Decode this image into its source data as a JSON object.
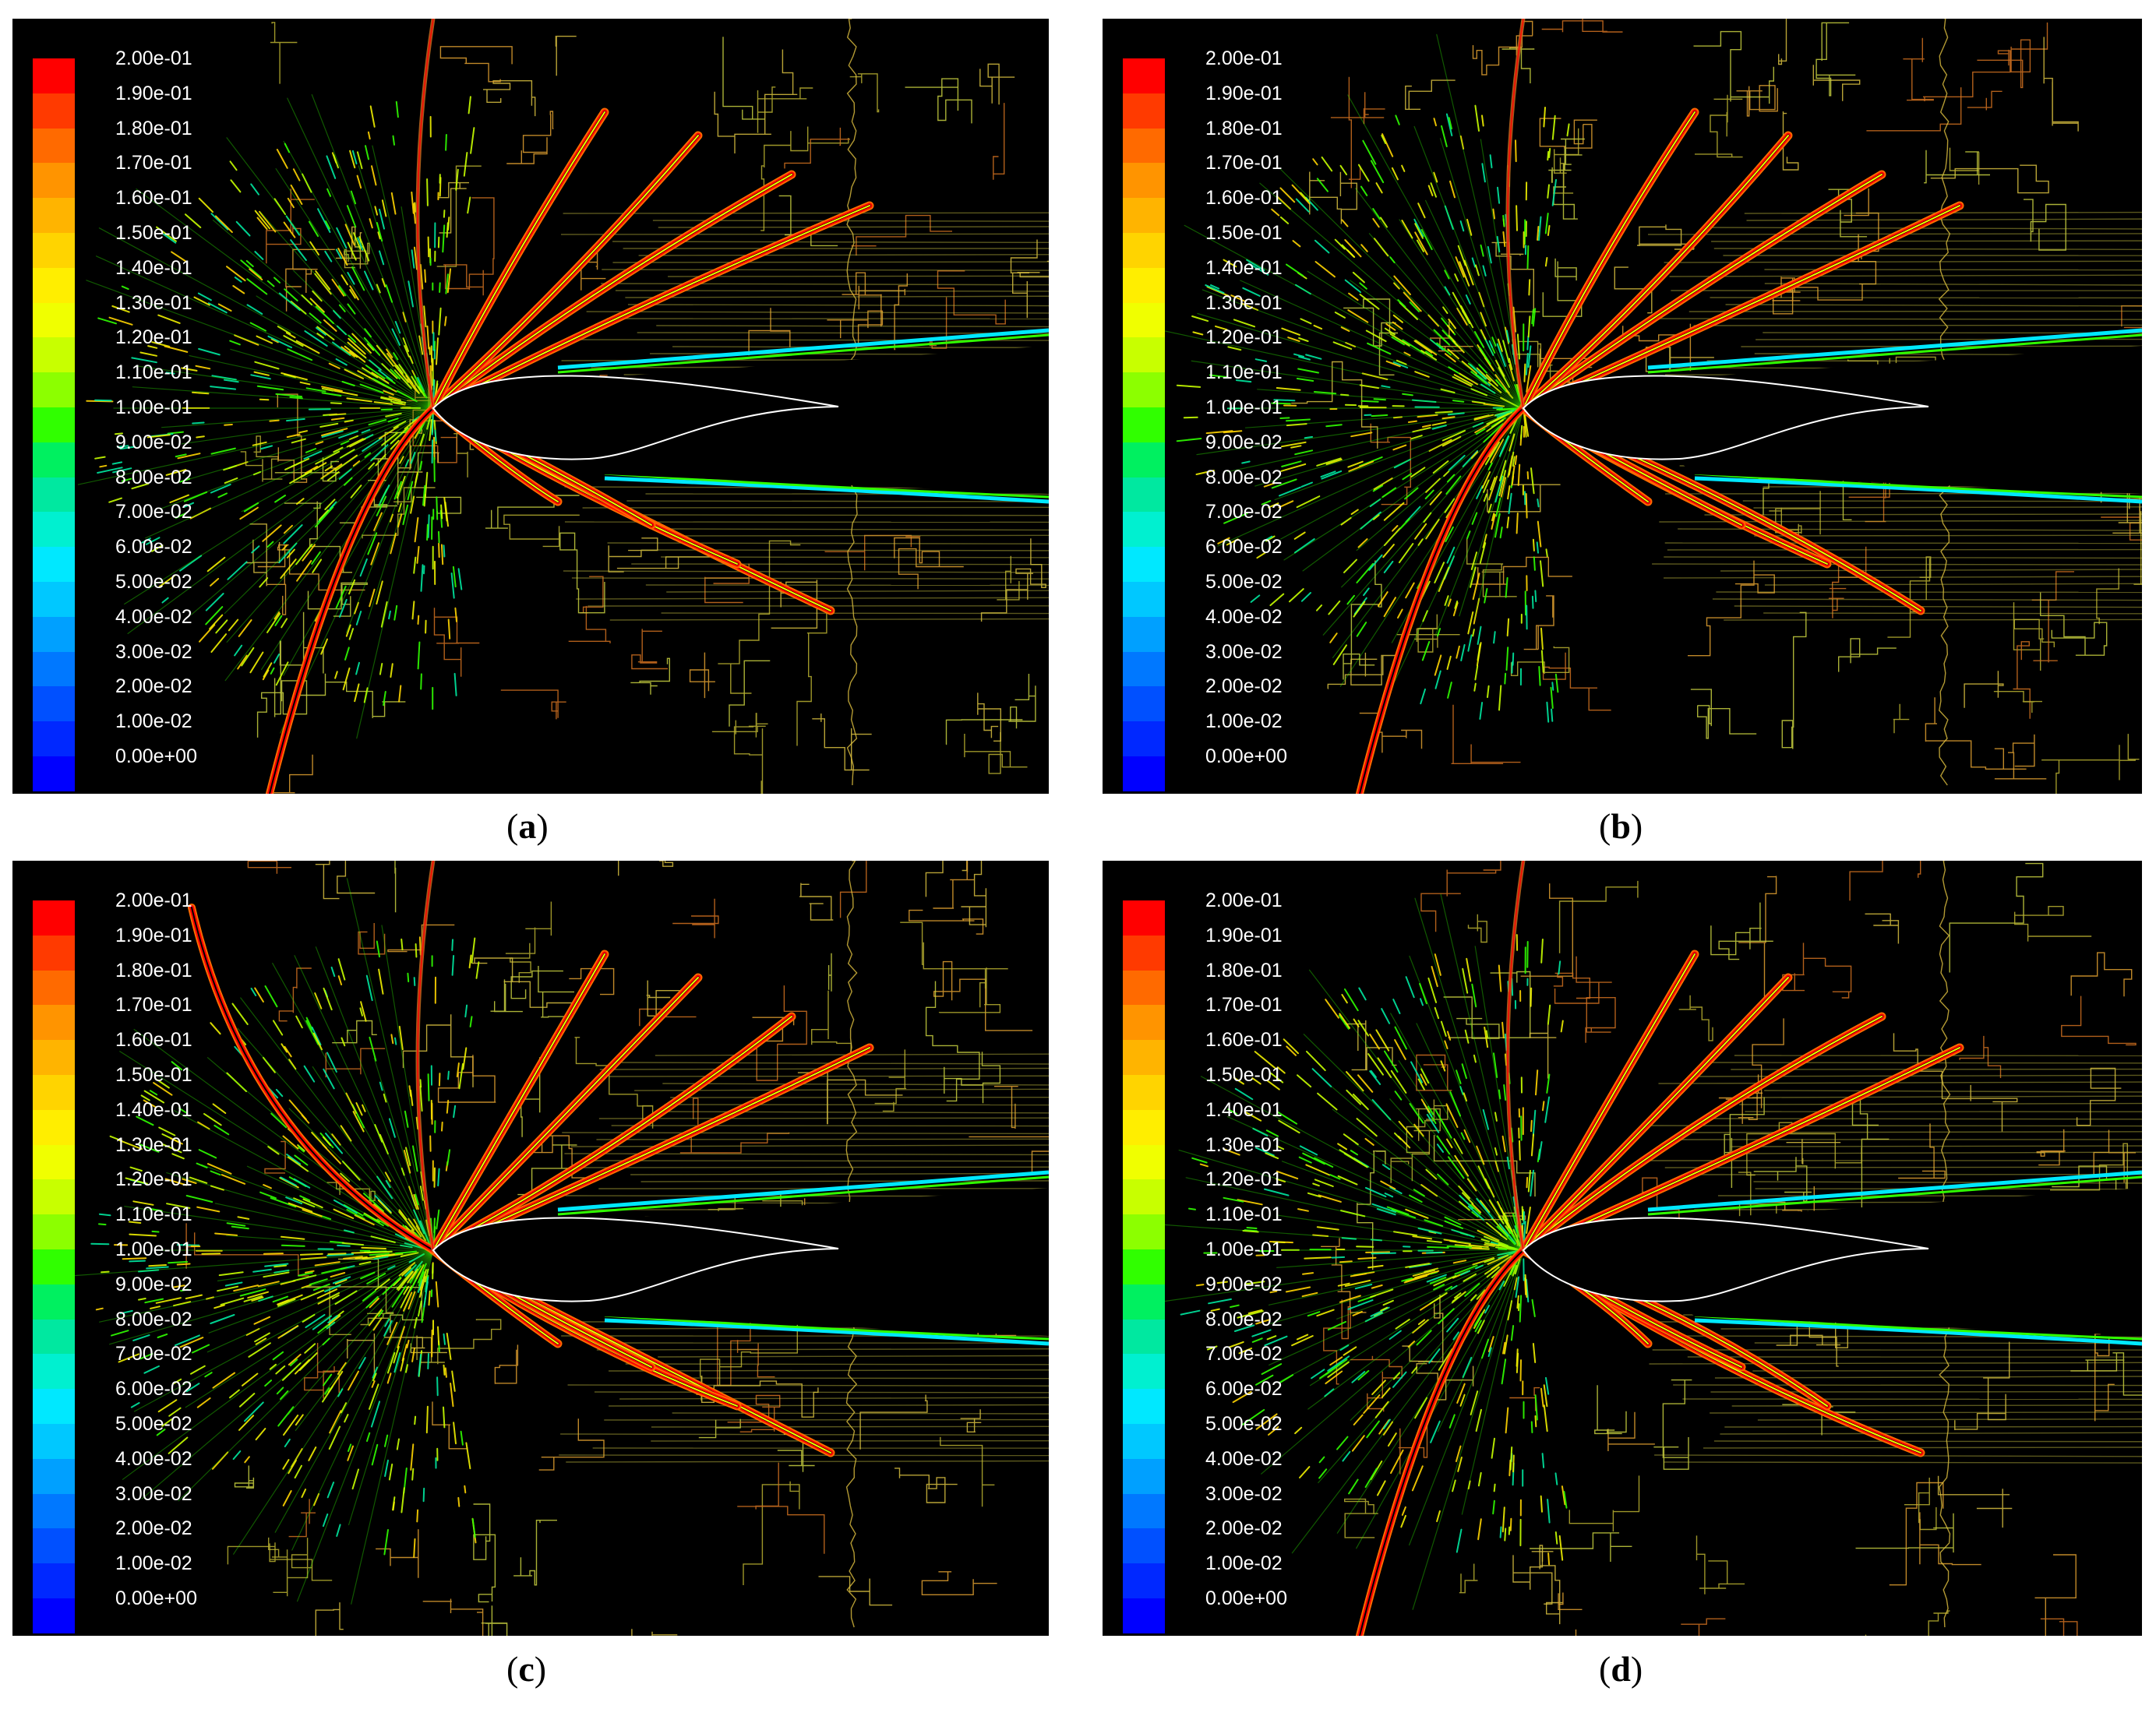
{
  "colorbar": {
    "labels": [
      "2.00e-01",
      "1.90e-01",
      "1.80e-01",
      "1.70e-01",
      "1.60e-01",
      "1.50e-01",
      "1.40e-01",
      "1.30e-01",
      "1.20e-01",
      "1.10e-01",
      "1.00e-01",
      "9.00e-02",
      "8.00e-02",
      "7.00e-02",
      "6.00e-02",
      "5.00e-02",
      "4.00e-02",
      "3.00e-02",
      "2.00e-02",
      "1.00e-02",
      "0.00e+00"
    ],
    "colors": [
      "#ff0000",
      "#ff3a00",
      "#ff6a00",
      "#ff9400",
      "#ffb400",
      "#ffd400",
      "#ffee00",
      "#f0ff00",
      "#c8ff00",
      "#8cff00",
      "#30ff00",
      "#00f060",
      "#00e8a0",
      "#00f0d0",
      "#00e8ff",
      "#00c8ff",
      "#00a0ff",
      "#0078ff",
      "#0050ff",
      "#0028ff",
      "#0000ff"
    ]
  },
  "panels": [
    {
      "id": "a",
      "caption_open": "(",
      "caption_letter": "a",
      "caption_close": ")"
    },
    {
      "id": "b",
      "caption_open": "(",
      "caption_letter": "b",
      "caption_close": ")"
    },
    {
      "id": "c",
      "caption_open": "(",
      "caption_letter": "c",
      "caption_close": ")"
    },
    {
      "id": "d",
      "caption_open": "(",
      "caption_letter": "d",
      "caption_close": ")"
    }
  ]
}
